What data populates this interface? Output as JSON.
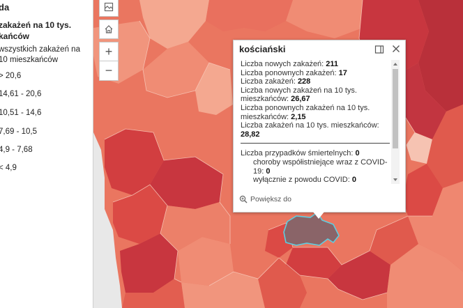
{
  "legend": {
    "title": "da",
    "subtitle": "zakażeń na 10 tys. kańców",
    "description": "wszystkich zakażeń na 10 mieszkańców",
    "classes": [
      {
        "label": "> 20,6",
        "color": "#c8363f"
      },
      {
        "label": "14,61 - 20,6",
        "color": "#db4a45"
      },
      {
        "label": "10,51 - 14,6",
        "color": "#e9705e"
      },
      {
        "label": "7,69 - 10,5",
        "color": "#f1957d"
      },
      {
        "label": "4,9 - 7,68",
        "color": "#f6b7a2"
      },
      {
        "label": "< 4,9",
        "color": "#fbd9cc"
      }
    ]
  },
  "map_controls": {
    "basemap_icon": "basemap-gallery-icon",
    "home_icon": "home-icon",
    "zoom_in": "+",
    "zoom_out": "−"
  },
  "popup": {
    "title": "kościański",
    "dock_icon": "dock-icon",
    "close_icon": "close-icon",
    "lines": {
      "new_cases_label": "Liczba nowych zakażeń: ",
      "new_cases_value": "211",
      "reinfections_label": "Liczba ponownych zakażeń: ",
      "reinfections_value": "17",
      "total_cases_label": "Liczba zakażeń: ",
      "total_cases_value": "228",
      "new_per10k_label": "Liczba nowych zakażeń na 10 tys. mieszkańców: ",
      "new_per10k_value": "26,67",
      "reinf_per10k_label": "Liczba ponownych zakażeń na 10 tys. mieszkańców: ",
      "reinf_per10k_value": "2,15",
      "total_per10k_label": "Liczba zakażeń na 10 tys. mieszkańców: ",
      "total_per10k_value": "28,82",
      "deaths_label": "Liczba przypadków śmiertelnych: ",
      "deaths_value": "0",
      "comorbid_label": "choroby współistniejące wraz z COVID-19: ",
      "comorbid_value": "0",
      "covid_only_label": "wyłącznie z powodu COVID: ",
      "covid_only_value": "0"
    },
    "footer": "Powiększ do",
    "footer_icon": "zoom-to-icon"
  },
  "colors": {
    "dark": "#c8363f",
    "red": "#db4a45",
    "mid": "#e9705e",
    "light": "#f1957d",
    "pale": "#f6b7a2",
    "palest": "#fbd9cc",
    "selected": "#8a6468",
    "selected_outline": "#5ecde0"
  }
}
